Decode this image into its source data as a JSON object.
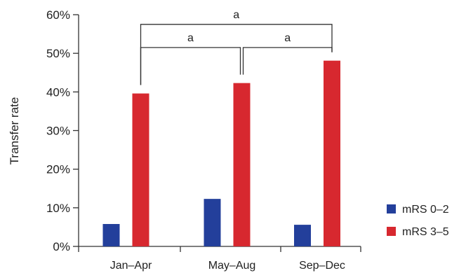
{
  "chart_data": {
    "type": "bar",
    "categories": [
      "Jan–Apr",
      "May–Aug",
      "Sep–Dec"
    ],
    "series": [
      {
        "name": "mRS 0–2",
        "values": [
          5.8,
          12.3,
          5.6
        ],
        "color": "#233f9b"
      },
      {
        "name": "mRS 3–5",
        "values": [
          39.6,
          42.3,
          48.1
        ],
        "color": "#d7282f"
      }
    ],
    "ylabel": "Transfer rate",
    "xlabel": "",
    "ylim": [
      0,
      60
    ],
    "yticks": [
      "0%",
      "10%",
      "20%",
      "30%",
      "40%",
      "50%",
      "60%"
    ],
    "grid": false,
    "legend_position": "bottom-right",
    "annotations": [
      {
        "from": "Jan–Apr",
        "to": "May–Aug",
        "label": "a"
      },
      {
        "from": "May–Aug",
        "to": "Sep–Dec",
        "label": "a"
      },
      {
        "from": "Jan–Apr",
        "to": "Sep–Dec",
        "label": "a"
      }
    ]
  }
}
